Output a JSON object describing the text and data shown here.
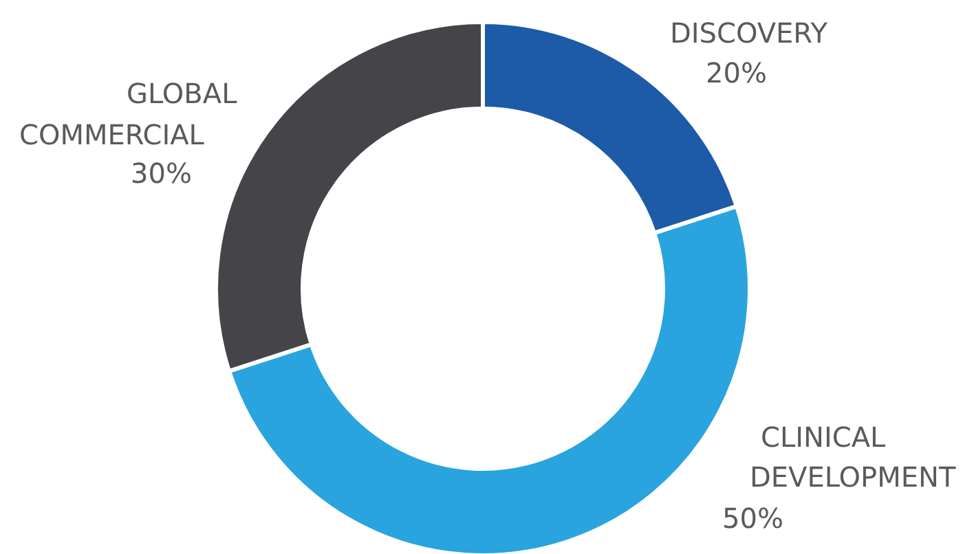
{
  "chart_data": {
    "type": "donut",
    "categories": [
      "DISCOVERY",
      "CLINICAL DEVELOPMENT",
      "GLOBAL COMMERCIAL"
    ],
    "values": [
      20,
      50,
      30
    ],
    "value_labels": [
      "20%",
      "50%",
      "30%"
    ],
    "colors": [
      "#1d5aa8",
      "#2aa4de",
      "#444449"
    ]
  }
}
